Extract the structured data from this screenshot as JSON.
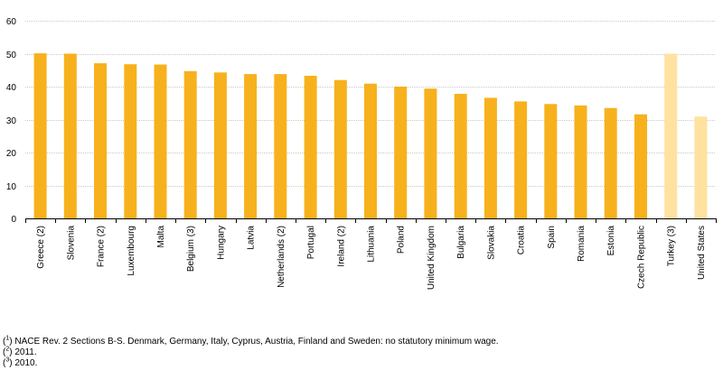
{
  "chart_data": {
    "type": "bar",
    "title": "",
    "xlabel": "",
    "ylabel": "",
    "ylim": [
      0,
      60
    ],
    "yticks": [
      0,
      10,
      20,
      30,
      40,
      50,
      60
    ],
    "grid": true,
    "categories": [
      "Greece (2)",
      "Slovenia",
      "France (2)",
      "Luxembourg",
      "Malta",
      "Belgium (3)",
      "Hungary",
      "Latvia",
      "Netherlands (2)",
      "Portugal",
      "Ireland (2)",
      "Lithuania",
      "Poland",
      "United Kingdom",
      "Bulgaria",
      "Slovakia",
      "Croatia",
      "Spain",
      "Romania",
      "Estonia",
      "Czech Republic",
      "Turkey (3)",
      "United States"
    ],
    "values": [
      50.1,
      50.0,
      47.1,
      46.8,
      46.7,
      44.7,
      44.3,
      43.8,
      43.8,
      43.3,
      42.0,
      40.9,
      40.0,
      39.4,
      37.8,
      36.6,
      35.5,
      34.7,
      34.3,
      33.5,
      31.6,
      50.0,
      30.9
    ],
    "colors": {
      "primary": "#F7B11C",
      "highlight": "#FFE1A0"
    },
    "highlight_categories": [
      "Turkey (3)",
      "United States"
    ]
  },
  "footnotes": [
    {
      "mark": "1",
      "text": "NACE Rev. 2 Sections B-S. Denmark, Germany, Italy, Cyprus, Austria, Finland and Sweden: no statutory minimum wage."
    },
    {
      "mark": "2",
      "text": "2011."
    },
    {
      "mark": "3",
      "text": "2010."
    }
  ]
}
